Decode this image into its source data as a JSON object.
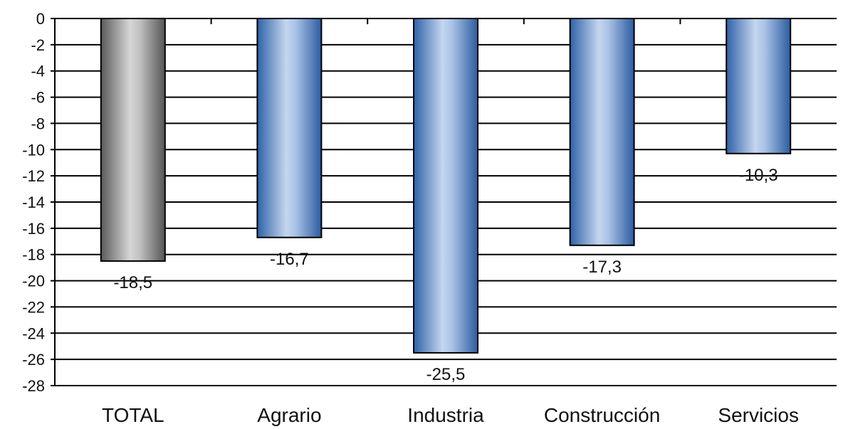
{
  "chart_data": {
    "type": "bar",
    "categories": [
      "TOTAL",
      "Agrario",
      "Industria",
      "Construcción",
      "Servicios"
    ],
    "values": [
      -18.5,
      -16.7,
      -25.5,
      -17.3,
      -10.3
    ],
    "value_labels": [
      "-18,5",
      "-16,7",
      "-25,5",
      "-17,3",
      "-10,3"
    ],
    "title": "",
    "xlabel": "",
    "ylabel": "",
    "ylim": [
      -28,
      0
    ],
    "y_ticks": [
      0,
      -2,
      -4,
      -6,
      -8,
      -10,
      -12,
      -14,
      -16,
      -18,
      -20,
      -22,
      -24,
      -26,
      -28
    ],
    "grid": true,
    "legend": "none",
    "colors": {
      "total_bar": "#8a8a8a",
      "category_bar": "#4a7fc0",
      "grid": "#000000"
    }
  }
}
